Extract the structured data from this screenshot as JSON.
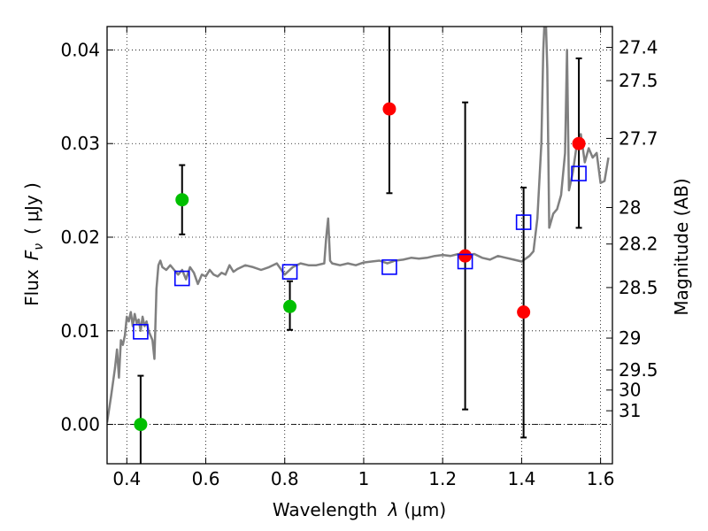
{
  "chart_data": {
    "type": "scatter",
    "xlabel_main": "Wavelength",
    "xlabel_symbol": "λ",
    "xlabel_unit": "(μm)",
    "ylabel_main": "Flux",
    "ylabel_symbol": "F",
    "ylabel_sub": "ν",
    "ylabel_unit": "( μJy )",
    "y2label": "Magnitude (AB)",
    "xlim": [
      0.35,
      1.63
    ],
    "ylim": [
      -0.0042,
      0.0425
    ],
    "grid": true,
    "x_ticks": [
      0.4,
      0.6,
      0.8,
      1.0,
      1.2,
      1.4,
      1.6
    ],
    "x_tick_labels": [
      "0.4",
      "0.6",
      "0.8",
      "1",
      "1.2",
      "1.4",
      "1.6"
    ],
    "y_ticks": [
      0.0,
      0.01,
      0.02,
      0.03,
      0.04
    ],
    "y_tick_labels": [
      "0.00",
      "0.01",
      "0.02",
      "0.03",
      "0.04"
    ],
    "magnitude_ticks": [
      {
        "label": "27.4",
        "flux": 0.04027
      },
      {
        "label": "27.5",
        "flux": 0.03672
      },
      {
        "label": "27.7",
        "flux": 0.03055
      },
      {
        "label": "28",
        "flux": 0.02317
      },
      {
        "label": "28.2",
        "flux": 0.01927
      },
      {
        "label": "28.5",
        "flux": 0.01462
      },
      {
        "label": "29",
        "flux": 0.00922
      },
      {
        "label": "29.5",
        "flux": 0.00582
      },
      {
        "label": "30",
        "flux": 0.00367
      },
      {
        "label": "31",
        "flux": 0.00146
      }
    ],
    "series": [
      {
        "type": "line",
        "color": "#808080",
        "x": [
          0.35,
          0.36,
          0.37,
          0.375,
          0.38,
          0.385,
          0.39,
          0.395,
          0.4,
          0.405,
          0.41,
          0.415,
          0.42,
          0.425,
          0.43,
          0.435,
          0.44,
          0.445,
          0.45,
          0.455,
          0.46,
          0.465,
          0.47,
          0.475,
          0.48,
          0.485,
          0.49,
          0.5,
          0.51,
          0.52,
          0.53,
          0.54,
          0.55,
          0.56,
          0.57,
          0.58,
          0.59,
          0.6,
          0.61,
          0.62,
          0.63,
          0.64,
          0.65,
          0.66,
          0.67,
          0.68,
          0.7,
          0.72,
          0.74,
          0.76,
          0.78,
          0.8,
          0.82,
          0.84,
          0.86,
          0.88,
          0.9,
          0.905,
          0.91,
          0.915,
          0.92,
          0.94,
          0.96,
          0.98,
          1.0,
          1.02,
          1.04,
          1.06,
          1.08,
          1.1,
          1.12,
          1.14,
          1.16,
          1.18,
          1.2,
          1.22,
          1.24,
          1.26,
          1.28,
          1.3,
          1.32,
          1.34,
          1.36,
          1.38,
          1.4,
          1.42,
          1.43,
          1.44,
          1.45,
          1.455,
          1.46,
          1.465,
          1.47,
          1.48,
          1.49,
          1.5,
          1.51,
          1.515,
          1.52,
          1.525,
          1.53,
          1.54,
          1.55,
          1.56,
          1.57,
          1.58,
          1.59,
          1.6,
          1.61,
          1.62
        ],
        "y": [
          0.0002,
          0.003,
          0.006,
          0.008,
          0.005,
          0.009,
          0.0085,
          0.0095,
          0.0115,
          0.011,
          0.012,
          0.0105,
          0.0118,
          0.0108,
          0.0112,
          0.01,
          0.0115,
          0.0105,
          0.011,
          0.01,
          0.0095,
          0.009,
          0.007,
          0.0145,
          0.017,
          0.0175,
          0.0168,
          0.0165,
          0.017,
          0.0165,
          0.016,
          0.0165,
          0.0155,
          0.0168,
          0.0162,
          0.015,
          0.016,
          0.0158,
          0.0165,
          0.016,
          0.0158,
          0.0162,
          0.016,
          0.017,
          0.0163,
          0.0166,
          0.017,
          0.0168,
          0.0165,
          0.0168,
          0.0172,
          0.016,
          0.0168,
          0.0172,
          0.017,
          0.017,
          0.0172,
          0.02,
          0.022,
          0.0175,
          0.0172,
          0.017,
          0.0172,
          0.017,
          0.0173,
          0.0174,
          0.0175,
          0.0172,
          0.0175,
          0.0176,
          0.0178,
          0.0177,
          0.0178,
          0.018,
          0.0181,
          0.018,
          0.0182,
          0.018,
          0.0182,
          0.0178,
          0.0176,
          0.018,
          0.0178,
          0.0176,
          0.0174,
          0.018,
          0.0185,
          0.022,
          0.03,
          0.04,
          0.045,
          0.038,
          0.021,
          0.0225,
          0.023,
          0.0245,
          0.029,
          0.04,
          0.025,
          0.026,
          0.027,
          0.03,
          0.031,
          0.028,
          0.0295,
          0.0285,
          0.029,
          0.0258,
          0.026,
          0.0285
        ]
      },
      {
        "type": "errorbar",
        "color": "#000000",
        "points": [
          {
            "x": 0.435,
            "y": 0.0,
            "lower": -0.006,
            "upper": 0.0052
          },
          {
            "x": 0.54,
            "y": 0.024,
            "lower": 0.0203,
            "upper": 0.0277
          },
          {
            "x": 0.813,
            "y": 0.0126,
            "lower": 0.0101,
            "upper": 0.0153
          },
          {
            "x": 1.065,
            "y": 0.0337,
            "lower": 0.0247,
            "upper": 0.044
          },
          {
            "x": 1.257,
            "y": 0.018,
            "lower": 0.0016,
            "upper": 0.0344
          },
          {
            "x": 1.405,
            "y": 0.012,
            "lower": -0.0014,
            "upper": 0.0253
          },
          {
            "x": 1.545,
            "y": 0.03,
            "lower": 0.021,
            "upper": 0.0391
          }
        ]
      },
      {
        "type": "scatter",
        "color": "#00bf00",
        "x": [
          0.435,
          0.54,
          0.813
        ],
        "y": [
          0.0,
          0.024,
          0.0126
        ]
      },
      {
        "type": "scatter",
        "color": "#ff0000",
        "x": [
          1.065,
          1.257,
          1.405,
          1.545
        ],
        "y": [
          0.0337,
          0.018,
          0.012,
          0.03
        ]
      },
      {
        "type": "scatter",
        "marker": "open-square",
        "color": "#0000ff",
        "x": [
          0.435,
          0.54,
          0.813,
          1.065,
          1.257,
          1.405,
          1.545
        ],
        "y": [
          0.0099,
          0.0156,
          0.0163,
          0.0168,
          0.0174,
          0.0216,
          0.0268
        ]
      }
    ]
  }
}
